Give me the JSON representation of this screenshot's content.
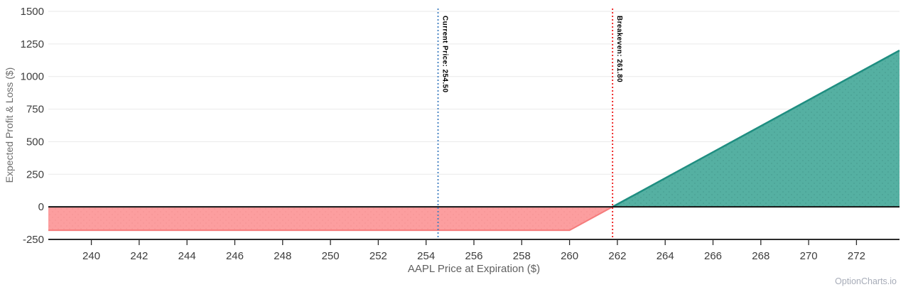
{
  "chart_data": {
    "type": "area",
    "title": "",
    "xlabel": "AAPL Price at Expiration ($)",
    "ylabel": "Expected Profit & Loss ($)",
    "xlim": [
      238.2,
      273.8
    ],
    "ylim": [
      -250,
      1500
    ],
    "x_ticks": [
      240,
      242,
      244,
      246,
      248,
      250,
      252,
      254,
      256,
      258,
      260,
      262,
      264,
      266,
      268,
      270,
      272
    ],
    "y_ticks": [
      -250,
      0,
      250,
      500,
      750,
      1000,
      1250,
      1500
    ],
    "grid": "horizontal",
    "legend": "none",
    "series": [
      {
        "name": "expected-profit-loss",
        "points": [
          [
            238.2,
            -180
          ],
          [
            260,
            -180
          ],
          [
            261.8,
            0
          ],
          [
            273.8,
            1200
          ]
        ]
      }
    ],
    "loss_area": {
      "fill": "#FC9697",
      "edge": "#F57C7C"
    },
    "profit_area": {
      "fill": "#4CAC9D",
      "edge": "#1F8E81"
    },
    "zero_line_color": "#141414",
    "axis_line_color": "#2B2B2B",
    "gridline_color": "#EAEAEA",
    "annotations": [
      {
        "label": "Current Price: 254.50",
        "x": 254.5,
        "line_color": "#3D7CC0",
        "style": "dotted"
      },
      {
        "label": "Breakeven: 261.80",
        "x": 261.8,
        "line_color": "#ED1515",
        "style": "dotted"
      }
    ],
    "watermark": "OptionCharts.io"
  }
}
